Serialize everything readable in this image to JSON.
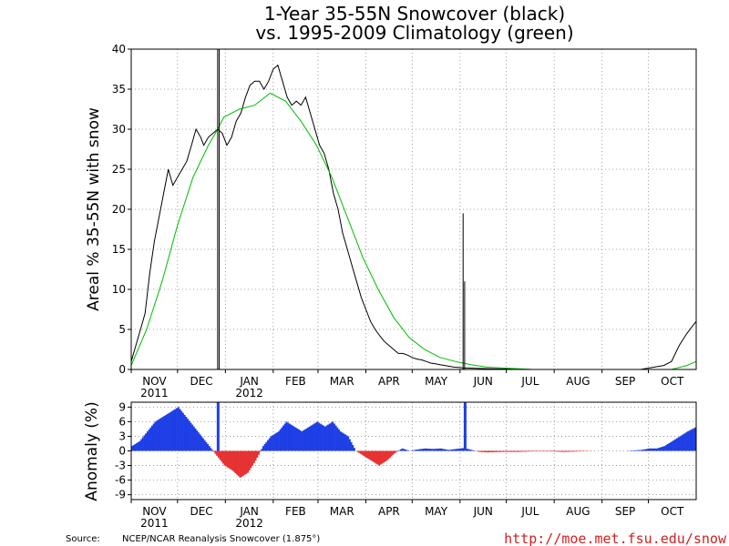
{
  "chart_data": [
    {
      "type": "line",
      "title_line1": "1-Year 35-55N Snowcover (black)",
      "title_line2": "vs. 1995-2009 Climatology (green)",
      "ylabel": "Areal % 35-55N with snow",
      "ylim": [
        0,
        40
      ],
      "yticks": [
        0,
        5,
        10,
        15,
        20,
        25,
        30,
        35,
        40
      ],
      "grid": true,
      "months": [
        "NOV",
        "DEC",
        "JAN",
        "FEB",
        "MAR",
        "APR",
        "MAY",
        "JUN",
        "JUL",
        "AUG",
        "SEP",
        "OCT"
      ],
      "year_labels": [
        {
          "month": "NOV",
          "text": "2011"
        },
        {
          "month": "JAN",
          "text": "2012"
        }
      ],
      "series": [
        {
          "color": "#000000",
          "x_day": [
            0,
            3,
            6,
            9,
            12,
            15,
            18,
            21,
            24,
            27,
            30,
            33,
            36,
            39,
            42,
            45,
            47,
            50,
            53,
            56,
            59,
            62,
            65,
            68,
            71,
            74,
            77,
            80,
            83,
            86,
            89,
            92,
            95,
            98,
            101,
            104,
            107,
            110,
            113,
            116,
            119,
            122,
            125,
            128,
            131,
            134,
            137,
            140,
            143,
            146,
            149,
            152,
            155,
            158,
            161,
            164,
            167,
            170,
            173,
            176,
            179,
            182,
            185,
            188,
            191,
            194,
            197,
            200,
            203,
            206,
            209,
            212,
            215,
            230,
            260,
            300,
            330,
            345,
            350,
            355,
            360,
            366
          ],
          "y": [
            1,
            3,
            5,
            7,
            12,
            16,
            19,
            22,
            25,
            23,
            24,
            25,
            26,
            28,
            30,
            29,
            28,
            29,
            29.5,
            30,
            29.5,
            28,
            29,
            31,
            32,
            34,
            35.5,
            36,
            36,
            35,
            36,
            37.5,
            38,
            36,
            34,
            33,
            33.5,
            33,
            34,
            32,
            30,
            28,
            27,
            25,
            22,
            20,
            17,
            15,
            13,
            11,
            9,
            7.5,
            6,
            5,
            4.2,
            3.5,
            3,
            2.5,
            2,
            2,
            1.8,
            1.5,
            1.3,
            1.2,
            1,
            0.8,
            0.7,
            0.6,
            0.5,
            0.4,
            0.3,
            0.25,
            0.2,
            0.1,
            0,
            0,
            0,
            0.5,
            1,
            3,
            4.5,
            6
          ]
        },
        {
          "color": "#00bb00",
          "x_day": [
            0,
            10,
            20,
            30,
            40,
            50,
            56,
            60,
            70,
            80,
            90,
            100,
            110,
            120,
            130,
            140,
            150,
            160,
            170,
            180,
            190,
            200,
            210,
            220,
            230,
            240,
            250,
            260,
            270,
            280,
            290,
            300,
            310,
            320,
            330,
            340,
            350,
            360,
            366
          ],
          "y": [
            0.5,
            5,
            11,
            18,
            24,
            28,
            30,
            31.5,
            32.5,
            33,
            34.5,
            33.5,
            31,
            28,
            24,
            19,
            14,
            10,
            6.5,
            4,
            2.5,
            1.5,
            1,
            0.6,
            0.3,
            0.2,
            0.1,
            0,
            0,
            0,
            0,
            0,
            0,
            0,
            0,
            0,
            0,
            0.5,
            1
          ]
        }
      ],
      "spikes": [
        {
          "day": 56,
          "value": 40
        },
        {
          "day": 57,
          "value": 40
        },
        {
          "day": 215,
          "value": 19.5
        },
        {
          "day": 216,
          "value": 11
        }
      ]
    },
    {
      "type": "bar",
      "ylabel": "Anomaly (%)",
      "ylim": [
        -10,
        10
      ],
      "yticks": [
        -9,
        -6,
        -3,
        0,
        3,
        6,
        9
      ],
      "grid": true,
      "colors": {
        "positive": "#1f3fe6",
        "negative": "#e63232"
      },
      "anomaly_x_day": [
        0,
        5,
        10,
        15,
        20,
        25,
        30,
        35,
        40,
        45,
        50,
        55,
        60,
        65,
        70,
        75,
        80,
        85,
        90,
        95,
        100,
        105,
        110,
        115,
        120,
        125,
        130,
        135,
        140,
        145,
        150,
        155,
        160,
        165,
        170,
        175,
        180,
        185,
        190,
        195,
        200,
        205,
        210,
        215,
        220,
        225,
        230,
        240,
        250,
        260,
        270,
        280,
        290,
        300,
        310,
        320,
        330,
        335,
        340,
        345,
        350,
        355,
        360,
        366
      ],
      "anomaly": [
        1,
        2,
        4,
        6,
        7,
        8,
        9,
        7,
        5,
        3,
        1,
        -1,
        -3,
        -4,
        -5.5,
        -4.5,
        -2,
        1,
        3,
        4,
        6,
        5,
        4,
        5,
        6,
        5,
        6,
        4,
        3,
        0,
        -1,
        -2,
        -3,
        -2,
        -0.5,
        0.5,
        0,
        0.3,
        0.5,
        0.4,
        0.5,
        0.2,
        0.4,
        0.6,
        0.2,
        -0.2,
        -0.3,
        -0.2,
        -0.2,
        -0.1,
        -0.1,
        -0.2,
        -0.1,
        0,
        0,
        0,
        0.2,
        0.5,
        0.5,
        1,
        2,
        3,
        4,
        5
      ],
      "spikes": [
        {
          "day": 56,
          "value": 10
        },
        {
          "day": 216,
          "value": 10
        }
      ],
      "months": [
        "NOV",
        "DEC",
        "JAN",
        "FEB",
        "MAR",
        "APR",
        "MAY",
        "JUN",
        "JUL",
        "AUG",
        "SEP",
        "OCT"
      ],
      "year_labels": [
        {
          "month": "NOV",
          "text": "2011"
        },
        {
          "month": "JAN",
          "text": "2012"
        }
      ]
    }
  ],
  "footer": {
    "source_label": "Source:",
    "source_text": "NCEP/NCAR Reanalysis Snowcover (1.875°)",
    "url": "http://moe.met.fsu.edu/snow"
  }
}
